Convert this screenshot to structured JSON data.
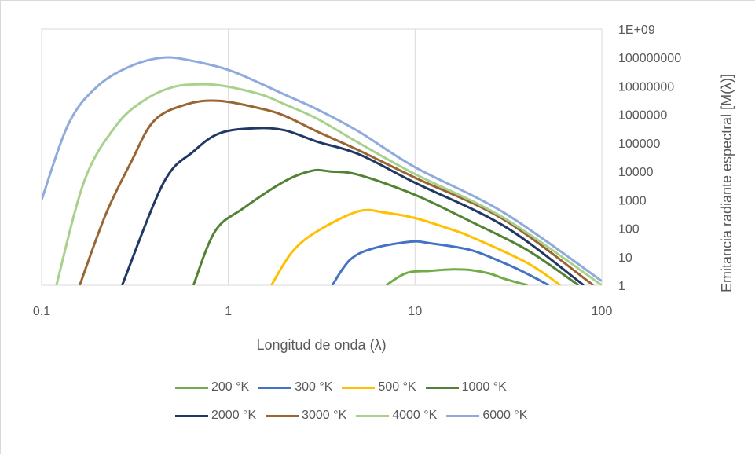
{
  "chart_data": {
    "type": "line",
    "xlabel": "Longitud de onda (λ)",
    "ylabel": "Emitancia radiante espectral [M(λ)]",
    "x_scale": "log",
    "y_scale": "log",
    "xlim": [
      0.1,
      100
    ],
    "ylim": [
      1,
      1000000000
    ],
    "x_ticks": [
      "0.1",
      "1",
      "10",
      "100"
    ],
    "y_ticks": [
      "1",
      "10",
      "100",
      "1000",
      "10000",
      "100000",
      "1000000",
      "10000000",
      "100000000",
      "1E+09"
    ],
    "grid": "vertical",
    "legend_position": "bottom",
    "series": [
      {
        "name": "200 °K",
        "color": "#70ad47",
        "points": [
          [
            7,
            1
          ],
          [
            9,
            2.7
          ],
          [
            12,
            3.2
          ],
          [
            16,
            3.6
          ],
          [
            20,
            3.4
          ],
          [
            25,
            2.6
          ],
          [
            30,
            1.7
          ],
          [
            40,
            1
          ]
        ]
      },
      {
        "name": "300 °K",
        "color": "#4472c4",
        "points": [
          [
            3.6,
            1
          ],
          [
            4.5,
            8
          ],
          [
            6,
            20
          ],
          [
            9.5,
            34
          ],
          [
            12,
            30
          ],
          [
            20,
            17
          ],
          [
            30,
            6
          ],
          [
            40,
            2.5
          ],
          [
            52,
            1
          ]
        ]
      },
      {
        "name": "500 °K",
        "color": "#ffc000",
        "points": [
          [
            1.7,
            1
          ],
          [
            2.2,
            15
          ],
          [
            3,
            80
          ],
          [
            5,
            400
          ],
          [
            7,
            350
          ],
          [
            10,
            230
          ],
          [
            15,
            100
          ],
          [
            20,
            50
          ],
          [
            40,
            6
          ],
          [
            60,
            1
          ]
        ]
      },
      {
        "name": "1000 °K",
        "color": "#548235",
        "points": [
          [
            0.65,
            1
          ],
          [
            0.85,
            80
          ],
          [
            1.2,
            500
          ],
          [
            2,
            4500
          ],
          [
            2.8,
            10500
          ],
          [
            3.5,
            10000
          ],
          [
            5,
            7500
          ],
          [
            10,
            1500
          ],
          [
            20,
            170
          ],
          [
            40,
            17
          ],
          [
            75,
            1
          ]
        ]
      },
      {
        "name": "2000 °K",
        "color": "#203864",
        "points": [
          [
            0.27,
            1
          ],
          [
            0.45,
            4000
          ],
          [
            0.65,
            50000
          ],
          [
            0.9,
            220000
          ],
          [
            1.4,
            330000
          ],
          [
            2,
            280000
          ],
          [
            3,
            110000
          ],
          [
            5,
            40000
          ],
          [
            10,
            4000
          ],
          [
            30,
            120
          ],
          [
            80,
            1
          ]
        ]
      },
      {
        "name": "3000 °K",
        "color": "#996633",
        "points": [
          [
            0.16,
            1
          ],
          [
            0.22,
            300
          ],
          [
            0.3,
            20000
          ],
          [
            0.4,
            600000
          ],
          [
            0.6,
            2300000
          ],
          [
            0.9,
            3000000
          ],
          [
            1.5,
            1600000
          ],
          [
            2,
            900000
          ],
          [
            3,
            250000
          ],
          [
            5,
            55000
          ],
          [
            10,
            6000
          ],
          [
            30,
            200
          ],
          [
            90,
            1
          ]
        ]
      },
      {
        "name": "4000 °K",
        "color": "#a9d18e",
        "points": [
          [
            0.12,
            1
          ],
          [
            0.17,
            5000
          ],
          [
            0.25,
            400000
          ],
          [
            0.35,
            3000000
          ],
          [
            0.5,
            9000000
          ],
          [
            0.7,
            11500000
          ],
          [
            0.95,
            10000000
          ],
          [
            1.5,
            5000000
          ],
          [
            2,
            2300000
          ],
          [
            3,
            700000
          ],
          [
            5,
            100000
          ],
          [
            10,
            8000
          ],
          [
            30,
            230
          ],
          [
            100,
            1
          ]
        ]
      },
      {
        "name": "6000 °K",
        "color": "#8faadc",
        "points": [
          [
            0.1,
            1000
          ],
          [
            0.14,
            500000
          ],
          [
            0.2,
            10000000
          ],
          [
            0.3,
            50000000
          ],
          [
            0.45,
            100000000
          ],
          [
            0.65,
            75000000
          ],
          [
            1,
            37000000
          ],
          [
            1.5,
            12000000
          ],
          [
            2,
            5000000
          ],
          [
            3,
            1500000
          ],
          [
            5,
            250000
          ],
          [
            10,
            14000
          ],
          [
            30,
            350
          ],
          [
            100,
            1.4
          ]
        ]
      }
    ]
  }
}
